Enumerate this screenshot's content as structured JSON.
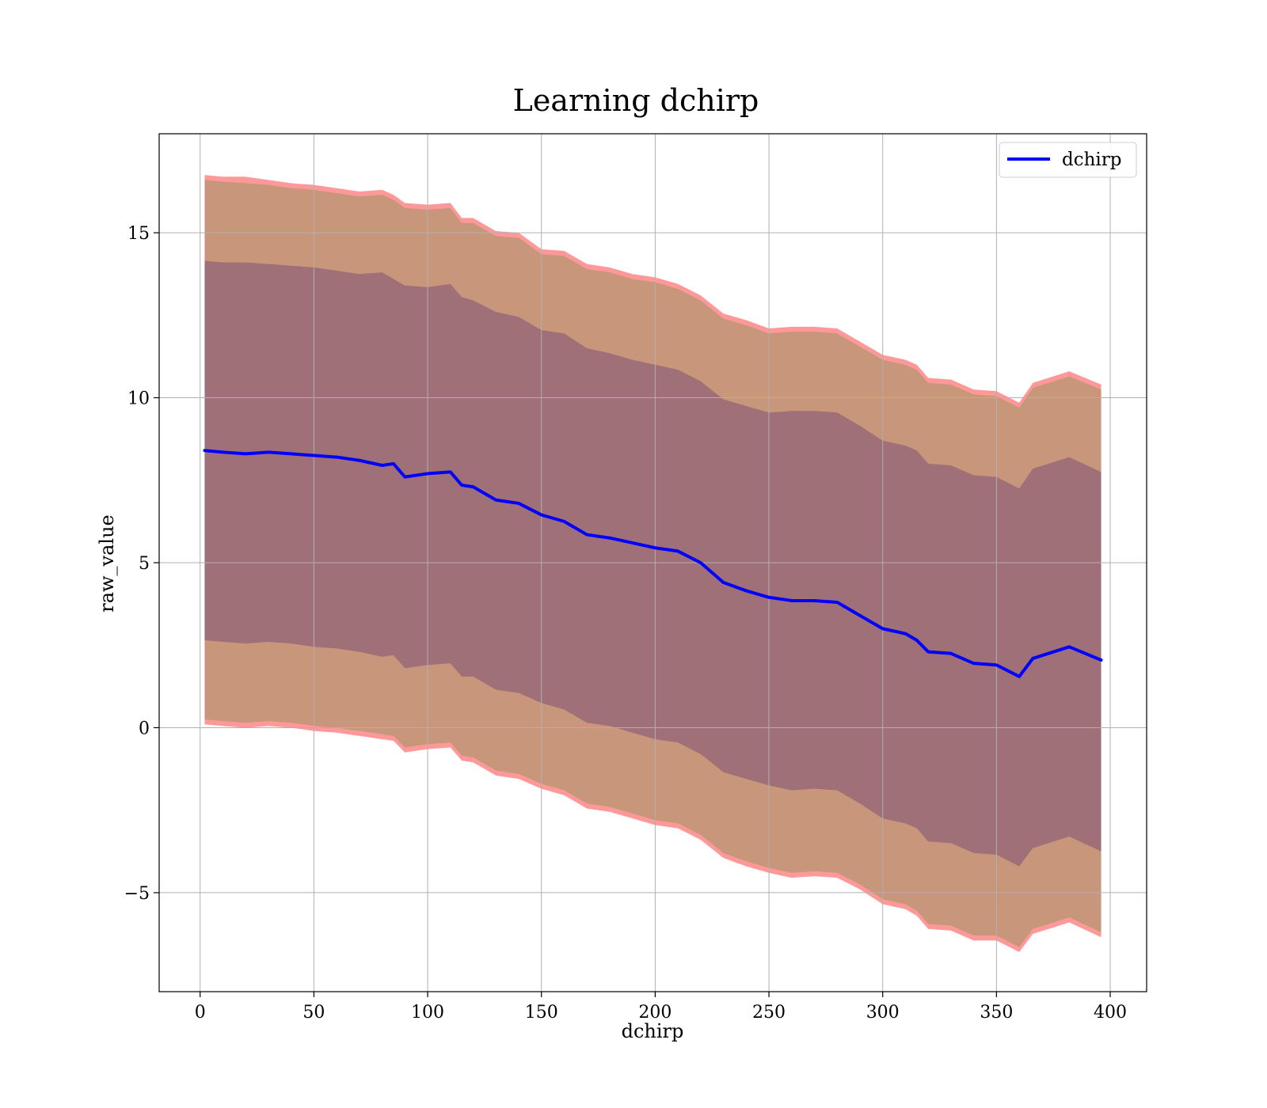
{
  "chart_data": {
    "type": "line",
    "title": "Learning dchirp",
    "xlabel": "dchirp",
    "ylabel": "raw_value",
    "xlim": [
      -18,
      416
    ],
    "ylim": [
      -8,
      18
    ],
    "xticks": [
      0,
      50,
      100,
      150,
      200,
      250,
      300,
      350,
      400
    ],
    "yticks": [
      -5,
      0,
      5,
      10,
      15
    ],
    "ytick_labels": [
      "−5",
      "0",
      "5",
      "10",
      "15"
    ],
    "grid": true,
    "legend": {
      "position": "top-right",
      "entries": [
        "dchirp"
      ]
    },
    "colors": {
      "mean_line": "#0000ff",
      "outer_band": "#ff9999",
      "middle_band": "#c8967a",
      "inner_band": "#a07078",
      "grid": "#b0b0b0"
    },
    "x": [
      2,
      10,
      20,
      30,
      40,
      50,
      60,
      70,
      80,
      85,
      90,
      100,
      110,
      115,
      120,
      130,
      140,
      150,
      160,
      170,
      180,
      190,
      200,
      210,
      220,
      230,
      240,
      250,
      260,
      270,
      280,
      290,
      300,
      310,
      315,
      320,
      330,
      340,
      350,
      360,
      366,
      382,
      396
    ],
    "series": [
      {
        "name": "dchirp",
        "values": [
          8.4,
          8.35,
          8.3,
          8.35,
          8.3,
          8.25,
          8.2,
          8.1,
          7.95,
          8.0,
          7.6,
          7.7,
          7.75,
          7.35,
          7.3,
          6.9,
          6.8,
          6.45,
          6.25,
          5.85,
          5.75,
          5.6,
          5.45,
          5.35,
          5.0,
          4.4,
          4.15,
          3.95,
          3.85,
          3.85,
          3.8,
          3.4,
          3.0,
          2.85,
          2.65,
          2.3,
          2.25,
          1.95,
          1.9,
          1.55,
          2.1,
          2.45,
          2.05
        ]
      }
    ],
    "bands": [
      {
        "name": "outer",
        "upper": [
          16.75,
          16.7,
          16.7,
          16.6,
          16.5,
          16.45,
          16.35,
          16.25,
          16.3,
          16.15,
          15.9,
          15.85,
          15.9,
          15.45,
          15.45,
          15.05,
          15.0,
          14.5,
          14.45,
          14.05,
          13.95,
          13.75,
          13.65,
          13.45,
          13.1,
          12.55,
          12.35,
          12.1,
          12.15,
          12.15,
          12.1,
          11.7,
          11.3,
          11.15,
          11.0,
          10.6,
          10.55,
          10.25,
          10.2,
          9.85,
          10.45,
          10.8,
          10.4
        ],
        "lower": [
          0.1,
          0.05,
          0.0,
          0.05,
          0.0,
          -0.1,
          -0.15,
          -0.25,
          -0.35,
          -0.4,
          -0.75,
          -0.65,
          -0.6,
          -1.0,
          -1.05,
          -1.45,
          -1.55,
          -1.85,
          -2.05,
          -2.45,
          -2.55,
          -2.75,
          -2.95,
          -3.05,
          -3.4,
          -3.95,
          -4.2,
          -4.4,
          -4.55,
          -4.5,
          -4.55,
          -4.9,
          -5.35,
          -5.5,
          -5.7,
          -6.1,
          -6.15,
          -6.45,
          -6.45,
          -6.8,
          -6.25,
          -5.9,
          -6.35
        ]
      },
      {
        "name": "middle",
        "upper": [
          16.6,
          16.55,
          16.5,
          16.45,
          16.35,
          16.3,
          16.2,
          16.1,
          16.15,
          16.0,
          15.75,
          15.7,
          15.75,
          15.3,
          15.3,
          14.9,
          14.85,
          14.35,
          14.3,
          13.9,
          13.8,
          13.6,
          13.5,
          13.3,
          12.95,
          12.4,
          12.2,
          11.95,
          12.0,
          12.0,
          11.95,
          11.55,
          11.15,
          11.0,
          10.85,
          10.45,
          10.4,
          10.1,
          10.05,
          9.7,
          10.3,
          10.65,
          10.25
        ],
        "lower": [
          0.25,
          0.2,
          0.15,
          0.2,
          0.15,
          0.05,
          0.0,
          -0.1,
          -0.2,
          -0.25,
          -0.6,
          -0.5,
          -0.45,
          -0.85,
          -0.9,
          -1.3,
          -1.4,
          -1.7,
          -1.9,
          -2.3,
          -2.4,
          -2.6,
          -2.8,
          -2.9,
          -3.25,
          -3.8,
          -4.05,
          -4.25,
          -4.4,
          -4.35,
          -4.4,
          -4.75,
          -5.2,
          -5.35,
          -5.55,
          -5.95,
          -6.0,
          -6.3,
          -6.3,
          -6.65,
          -6.1,
          -5.75,
          -6.2
        ]
      },
      {
        "name": "inner",
        "upper": [
          14.15,
          14.1,
          14.1,
          14.05,
          14.0,
          13.95,
          13.85,
          13.75,
          13.8,
          13.6,
          13.4,
          13.35,
          13.45,
          13.05,
          12.95,
          12.6,
          12.45,
          12.05,
          11.95,
          11.5,
          11.35,
          11.15,
          11.0,
          10.85,
          10.5,
          9.95,
          9.75,
          9.55,
          9.6,
          9.6,
          9.55,
          9.15,
          8.7,
          8.55,
          8.4,
          8.0,
          7.95,
          7.65,
          7.6,
          7.25,
          7.85,
          8.2,
          7.75
        ],
        "lower": [
          2.65,
          2.6,
          2.55,
          2.6,
          2.55,
          2.45,
          2.4,
          2.3,
          2.15,
          2.2,
          1.8,
          1.9,
          1.95,
          1.55,
          1.55,
          1.15,
          1.05,
          0.75,
          0.55,
          0.15,
          0.05,
          -0.15,
          -0.35,
          -0.45,
          -0.8,
          -1.35,
          -1.55,
          -1.75,
          -1.9,
          -1.85,
          -1.9,
          -2.3,
          -2.75,
          -2.9,
          -3.05,
          -3.45,
          -3.5,
          -3.8,
          -3.85,
          -4.2,
          -3.65,
          -3.3,
          -3.75
        ]
      }
    ]
  }
}
